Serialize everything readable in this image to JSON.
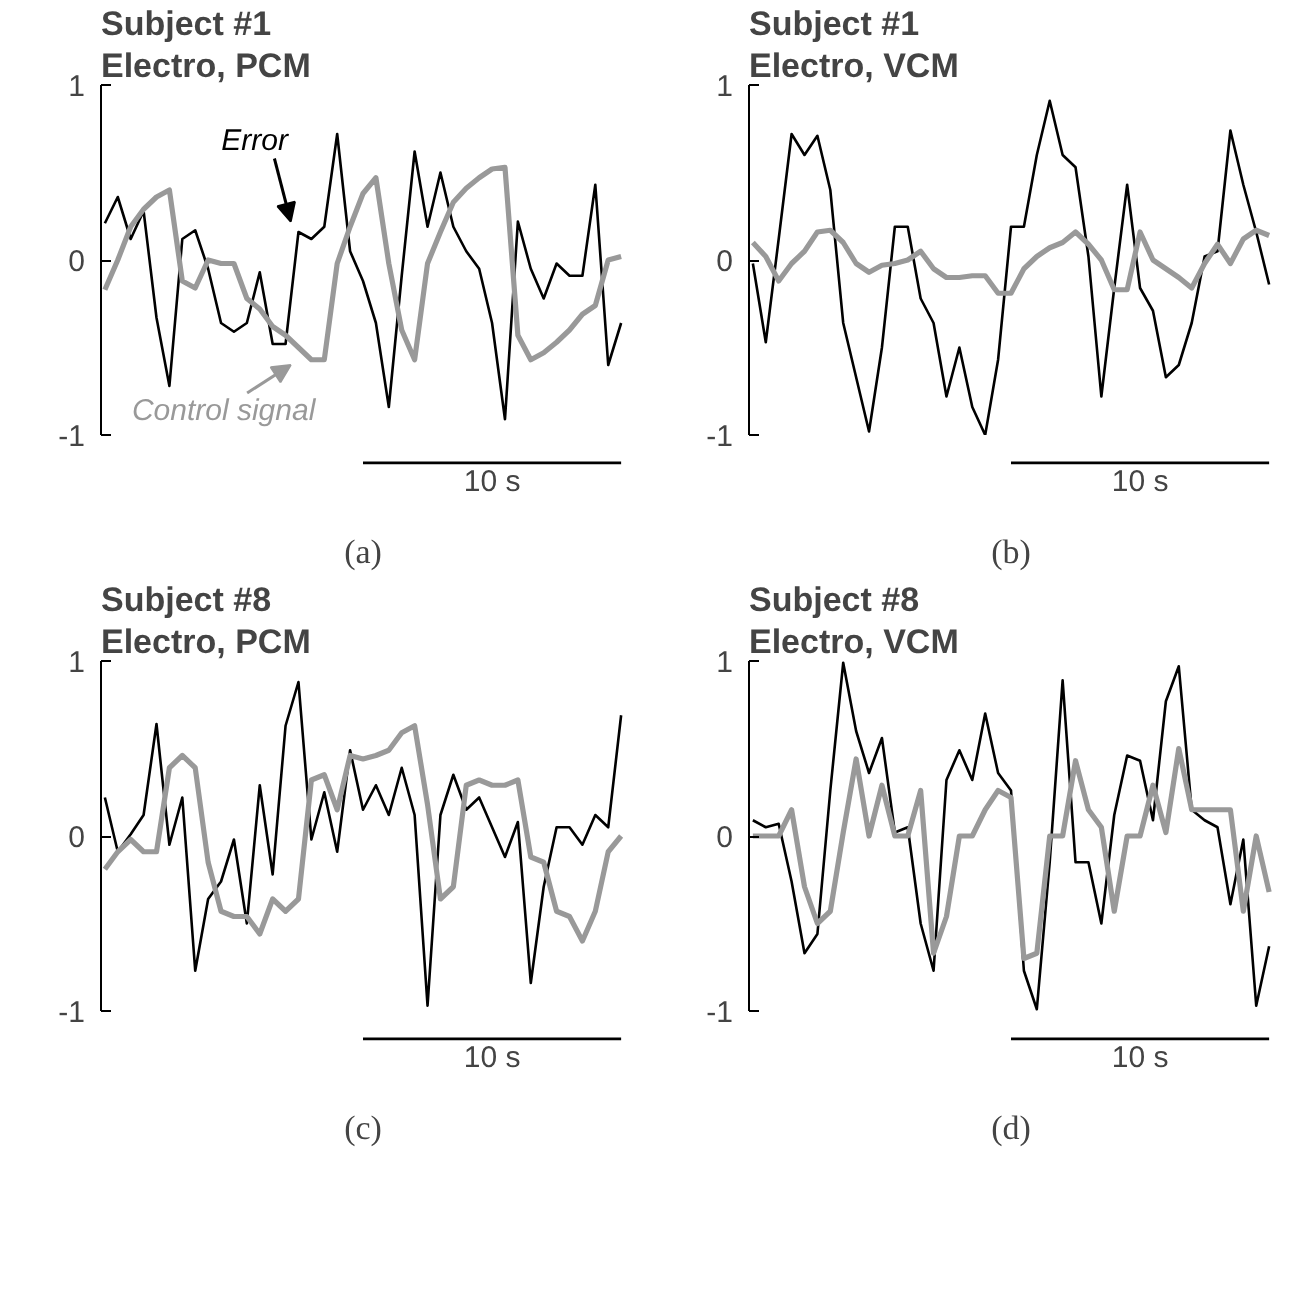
{
  "chart_data": [
    {
      "type": "line",
      "title": "Subject #1",
      "subtitle": "Electro, PCM",
      "xlabel": "(a)",
      "annotations": [
        "10 s"
      ],
      "ylim": [
        -1,
        1
      ],
      "yticks": [
        -1,
        0,
        1
      ],
      "categories": [
        null,
        null,
        null,
        null,
        null,
        null,
        null,
        null,
        null,
        null,
        null,
        null,
        null,
        null,
        null,
        null,
        null,
        null,
        null,
        null,
        null,
        null,
        null,
        null,
        null,
        null,
        null,
        null,
        null,
        null,
        null,
        null,
        null,
        null,
        null,
        null,
        null,
        null,
        null,
        null,
        null
      ],
      "series": [
        {
          "name": "Error",
          "color": "#000000",
          "values": [
            0.21,
            0.36,
            0.12,
            0.28,
            -0.33,
            -0.72,
            0.12,
            0.17,
            -0.05,
            -0.36,
            -0.41,
            -0.36,
            -0.07,
            -0.48,
            -0.48,
            0.16,
            0.12,
            0.19,
            0.72,
            0.05,
            -0.12,
            -0.36,
            -0.84,
            -0.09,
            0.62,
            0.19,
            0.5,
            0.19,
            0.05,
            -0.05,
            -0.36,
            -0.91,
            0.22,
            -0.05,
            -0.22,
            -0.02,
            -0.09,
            -0.09,
            0.43,
            -0.6,
            -0.36
          ]
        },
        {
          "name": "Control signal",
          "color": "#999999",
          "values": [
            -0.17,
            0,
            0.19,
            0.29,
            0.36,
            0.4,
            -0.12,
            -0.16,
            0,
            -0.02,
            -0.02,
            -0.22,
            -0.28,
            -0.38,
            -0.43,
            -0.5,
            -0.57,
            -0.57,
            -0.02,
            0.19,
            0.38,
            0.47,
            -0.02,
            -0.4,
            -0.57,
            -0.02,
            0.16,
            0.33,
            0.41,
            0.47,
            0.52,
            0.53,
            -0.43,
            -0.57,
            -0.53,
            -0.47,
            -0.4,
            -0.31,
            -0.26,
            0,
            0.02
          ]
        }
      ]
    },
    {
      "type": "line",
      "title": "Subject #1",
      "subtitle": "Electro, VCM",
      "xlabel": "(b)",
      "annotations": [
        "10 s"
      ],
      "ylim": [
        -1,
        1
      ],
      "yticks": [
        -1,
        0,
        1
      ],
      "categories": [
        null,
        null,
        null,
        null,
        null,
        null,
        null,
        null,
        null,
        null,
        null,
        null,
        null,
        null,
        null,
        null,
        null,
        null,
        null,
        null,
        null,
        null,
        null,
        null,
        null,
        null,
        null,
        null,
        null,
        null,
        null,
        null,
        null,
        null,
        null,
        null,
        null,
        null,
        null,
        null,
        null
      ],
      "series": [
        {
          "color": "#000000",
          "values": [
            -0.02,
            -0.47,
            0.12,
            0.72,
            0.6,
            0.71,
            0.4,
            -0.36,
            -0.67,
            -0.98,
            -0.5,
            0.19,
            0.19,
            -0.22,
            -0.36,
            -0.78,
            -0.5,
            -0.84,
            -1.0,
            -0.57,
            0.19,
            0.19,
            0.6,
            0.91,
            0.6,
            0.53,
            0.02,
            -0.78,
            -0.16,
            0.43,
            -0.16,
            -0.29,
            -0.67,
            -0.6,
            -0.36,
            0.02,
            0.05,
            0.74,
            0.43,
            0.16,
            -0.14
          ]
        },
        {
          "color": "#999999",
          "values": [
            0.1,
            0.02,
            -0.12,
            -0.02,
            0.05,
            0.16,
            0.17,
            0.1,
            -0.02,
            -0.07,
            -0.03,
            -0.02,
            0,
            0.05,
            -0.05,
            -0.1,
            -0.1,
            -0.09,
            -0.09,
            -0.19,
            -0.19,
            -0.05,
            0.02,
            0.07,
            0.1,
            0.16,
            0.09,
            0,
            -0.17,
            -0.17,
            0.16,
            0,
            -0.05,
            -0.1,
            -0.16,
            -0.02,
            0.09,
            -0.02,
            0.12,
            0.17,
            0.14
          ]
        }
      ]
    },
    {
      "type": "line",
      "title": "Subject #8",
      "subtitle": "Electro, PCM",
      "xlabel": "(c)",
      "annotations": [
        "10 s"
      ],
      "ylim": [
        -1,
        1
      ],
      "yticks": [
        -1,
        0,
        1
      ],
      "categories": [
        null,
        null,
        null,
        null,
        null,
        null,
        null,
        null,
        null,
        null,
        null,
        null,
        null,
        null,
        null,
        null,
        null,
        null,
        null,
        null,
        null,
        null,
        null,
        null,
        null,
        null,
        null,
        null,
        null,
        null,
        null,
        null,
        null,
        null,
        null,
        null,
        null,
        null,
        null,
        null,
        null
      ],
      "series": [
        {
          "color": "#000000",
          "values": [
            0.22,
            -0.09,
            0.01,
            0.12,
            0.64,
            -0.05,
            0.22,
            -0.77,
            -0.36,
            -0.26,
            -0.02,
            -0.5,
            0.29,
            -0.22,
            0.63,
            0.88,
            -0.02,
            0.25,
            -0.09,
            0.49,
            0.15,
            0.29,
            0.12,
            0.39,
            0.12,
            -0.97,
            0.12,
            0.35,
            0.15,
            0.22,
            0.05,
            -0.12,
            0.08,
            -0.84,
            -0.29,
            0.05,
            0.05,
            -0.05,
            0.12,
            0.05,
            0.69
          ]
        },
        {
          "color": "#999999",
          "values": [
            -0.19,
            -0.09,
            -0.02,
            -0.09,
            -0.09,
            0.39,
            0.46,
            0.39,
            -0.15,
            -0.43,
            -0.46,
            -0.46,
            -0.56,
            -0.36,
            -0.43,
            -0.36,
            0.32,
            0.35,
            0.15,
            0.46,
            0.44,
            0.46,
            0.49,
            0.59,
            0.63,
            0.18,
            -0.36,
            -0.29,
            0.29,
            0.32,
            0.29,
            0.29,
            0.32,
            -0.12,
            -0.15,
            -0.43,
            -0.46,
            -0.6,
            -0.43,
            -0.09,
            0
          ]
        }
      ]
    },
    {
      "type": "line",
      "title": "Subject #8",
      "subtitle": "Electro, VCM",
      "xlabel": "(d)",
      "annotations": [
        "10 s"
      ],
      "ylim": [
        -1,
        1
      ],
      "yticks": [
        -1,
        0,
        1
      ],
      "categories": [
        null,
        null,
        null,
        null,
        null,
        null,
        null,
        null,
        null,
        null,
        null,
        null,
        null,
        null,
        null,
        null,
        null,
        null,
        null,
        null,
        null,
        null,
        null,
        null,
        null,
        null,
        null,
        null,
        null,
        null,
        null,
        null,
        null,
        null,
        null,
        null,
        null,
        null,
        null,
        null,
        null
      ],
      "series": [
        {
          "color": "#000000",
          "values": [
            0.09,
            0.05,
            0.07,
            -0.26,
            -0.67,
            -0.56,
            0.26,
            0.99,
            0.6,
            0.36,
            0.56,
            0.02,
            0.05,
            -0.5,
            -0.77,
            0.32,
            0.49,
            0.32,
            0.7,
            0.36,
            0.26,
            -0.77,
            -0.99,
            -0.15,
            0.89,
            -0.15,
            -0.15,
            -0.5,
            0.12,
            0.46,
            0.43,
            0.09,
            0.77,
            0.97,
            0.15,
            0.09,
            0.05,
            -0.39,
            -0.02,
            -0.97,
            -0.63
          ]
        },
        {
          "color": "#999999",
          "values": [
            0,
            0,
            0,
            0.15,
            -0.29,
            -0.5,
            -0.43,
            0.02,
            0.44,
            0,
            0.29,
            0,
            0,
            0.26,
            -0.67,
            -0.46,
            0,
            0,
            0.15,
            0.26,
            0.22,
            -0.7,
            -0.67,
            0,
            0,
            0.43,
            0.15,
            0.05,
            -0.43,
            0,
            0,
            0.29,
            0.02,
            0.5,
            0.15,
            0.15,
            0.15,
            0.15,
            -0.43,
            0,
            -0.32
          ]
        }
      ]
    }
  ]
}
